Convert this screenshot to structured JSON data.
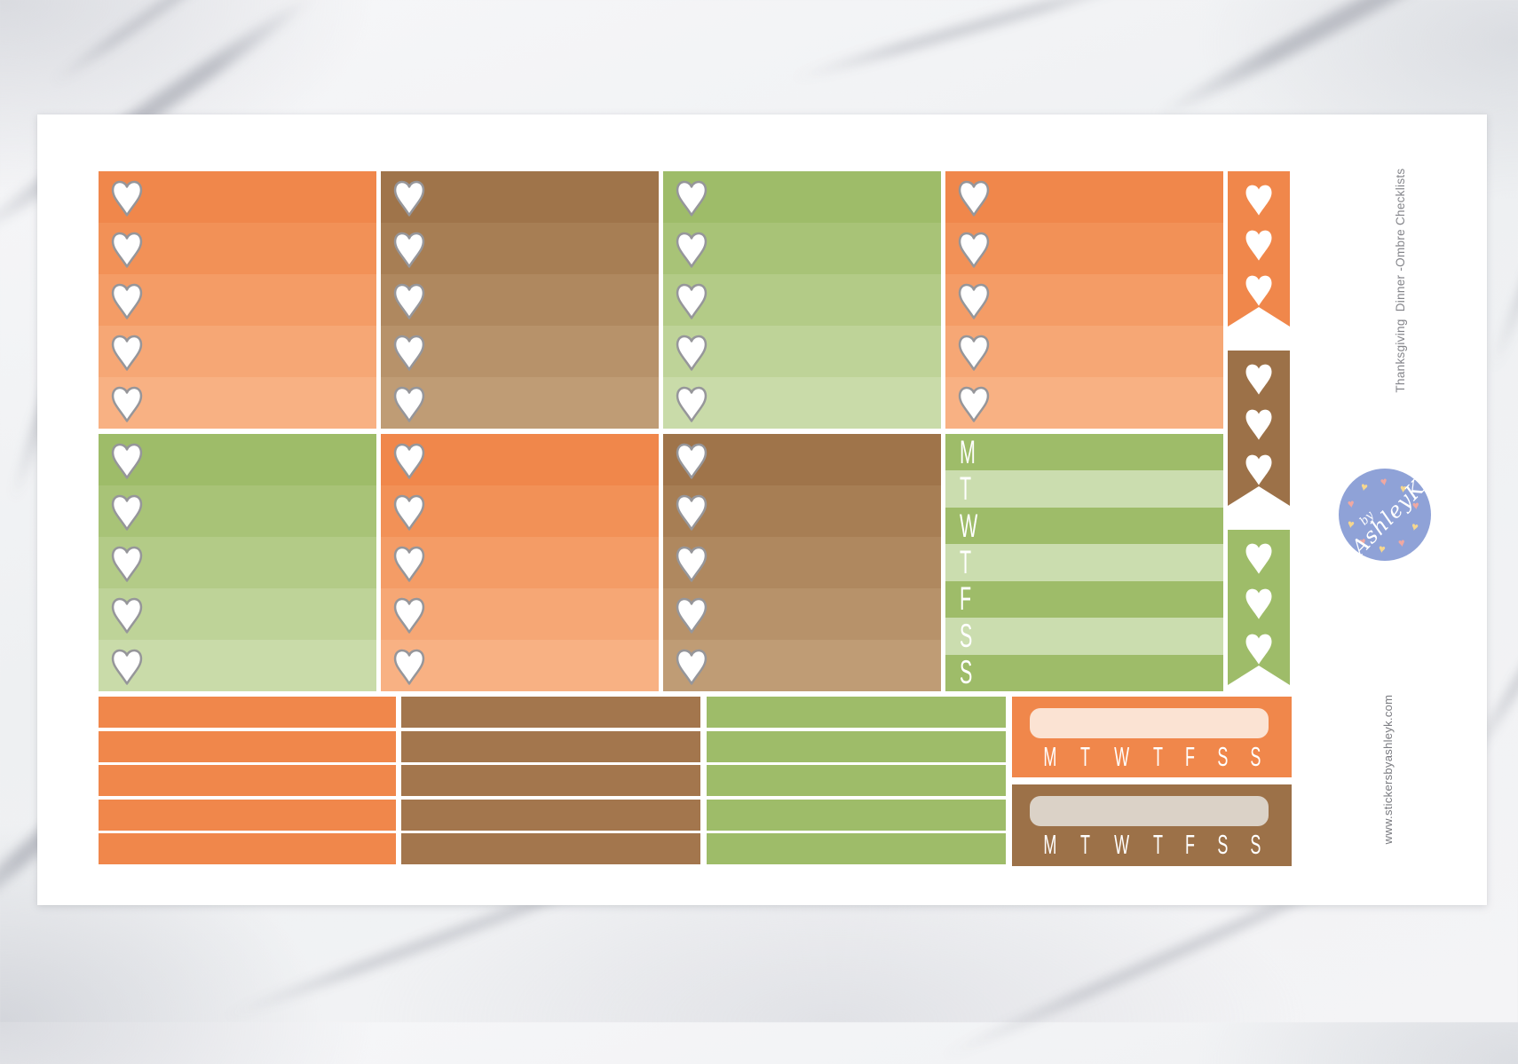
{
  "sheet": {
    "title_vertical": "Thanksgiving  Dinner -Ombre Checklists",
    "website": "www.stickersbyashleyk.com",
    "bg": "#FFFFFF",
    "side_text_color": "#85868B"
  },
  "logo": {
    "by": "by",
    "name": "AshleyK",
    "bg": "#8FA2D7",
    "text_color": "#FFFFFF",
    "heart_colors": [
      "#F6D78E",
      "#F0A8A1"
    ]
  },
  "palette": {
    "orange": [
      "#F0874B",
      "#F29157",
      "#F49C66",
      "#F6A775",
      "#F8B183"
    ],
    "brown": [
      "#9F744A",
      "#A77E54",
      "#AF885F",
      "#B7926A",
      "#BF9C75"
    ],
    "green": [
      "#9EBC69",
      "#A8C377",
      "#B3CB87",
      "#BED398",
      "#C9DBA9"
    ],
    "week_green": {
      "dark": "#9EBC69",
      "light": "#CBDDAF"
    },
    "flag_orange": "#F0874B",
    "flag_brown": "#9C7148",
    "flag_green": "#9EBC69",
    "strip_orange": "#F0874B",
    "strip_brown": "#A3764D",
    "strip_green": "#9EBC69",
    "tracker_orange": {
      "bg": "#F0874B",
      "field": "#FBE3D3"
    },
    "tracker_brown": {
      "bg": "#9C7148",
      "field": "#DBD2C7"
    },
    "heart_fill": "#FFFFFF",
    "heart_outline": "#96969A",
    "letter_color": "#FFFFFF"
  },
  "week_letters": [
    "M",
    "T",
    "W",
    "T",
    "F",
    "S",
    "S"
  ],
  "grid": {
    "row1_boxes": [
      "orange",
      "brown",
      "green",
      "orange"
    ],
    "row2_boxes": [
      "green",
      "orange",
      "brown",
      "week"
    ],
    "flags": [
      "flag_orange",
      "flag_brown",
      "flag_green"
    ],
    "strip_columns": [
      "strip_orange",
      "strip_brown",
      "strip_green"
    ],
    "trackers": [
      "tracker_orange",
      "tracker_brown"
    ],
    "hearts_per_box": 5,
    "hearts_per_flag": 3,
    "strips_per_column": 5
  }
}
